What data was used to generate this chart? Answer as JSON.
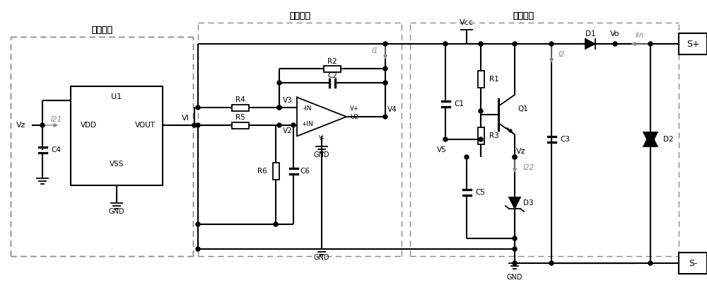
{
  "figsize": [
    10.0,
    4.17
  ],
  "dpi": 100,
  "bg_color": "#ffffff",
  "part1_label": "第一部分",
  "part2_label": "第二部分",
  "part3_label": "第三部分",
  "font": "SimSun"
}
